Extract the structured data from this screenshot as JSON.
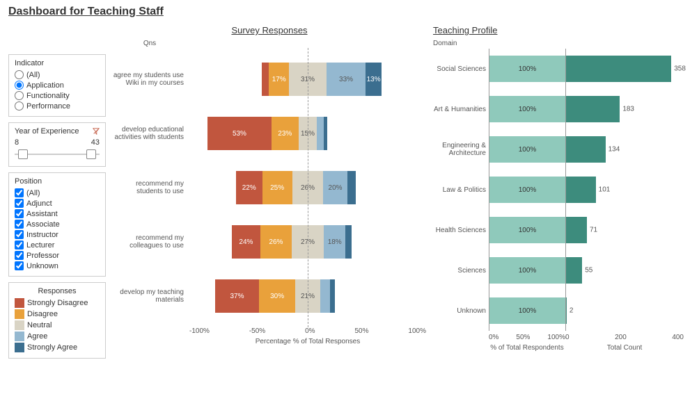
{
  "title": "Dashboard for Teaching Staff",
  "colors": {
    "strongly_disagree": "#c1563e",
    "disagree": "#e9a13b",
    "neutral": "#d9d4c5",
    "agree": "#94b8d0",
    "strongly_agree": "#3b6e8f",
    "pct_bar": "#8fc9bb",
    "count_bar": "#3d8c7d",
    "border": "#cccccc",
    "text_muted": "#555555"
  },
  "filters": {
    "indicator": {
      "title": "Indicator",
      "options": [
        "(All)",
        "Application",
        "Functionality",
        "Performance"
      ],
      "selected": "Application"
    },
    "yoe": {
      "title": "Year of Experience",
      "min": 8,
      "max": 43,
      "low_pos": 0.04,
      "high_pos": 0.96
    },
    "position": {
      "title": "Position",
      "options": [
        "(All)",
        "Adjunct",
        "Assistant",
        "Associate",
        "Instructor",
        "Lecturer",
        "Professor",
        "Unknown"
      ]
    }
  },
  "legend": {
    "title": "Responses",
    "items": [
      {
        "label": "Strongly Disagree",
        "color": "#c1563e"
      },
      {
        "label": "Disagree",
        "color": "#e9a13b"
      },
      {
        "label": "Neutral",
        "color": "#d9d4c5"
      },
      {
        "label": "Agree",
        "color": "#94b8d0"
      },
      {
        "label": "Strongly Agree",
        "color": "#3b6e8f"
      }
    ]
  },
  "survey": {
    "title": "Survey Responses",
    "qns_label": "Qns",
    "x_label": "Percentage % of Total Responses",
    "x_ticks": [
      "-100%",
      "-50%",
      "0%",
      "50%",
      "100%"
    ],
    "x_min": -100,
    "x_max": 100,
    "rows": [
      {
        "label": "agree my students use Wiki in my courses",
        "segments": [
          {
            "cat": "strongly_disagree",
            "pct": 6,
            "show": false
          },
          {
            "cat": "disagree",
            "pct": 17,
            "show": true
          },
          {
            "cat": "neutral",
            "pct": 31,
            "show": true
          },
          {
            "cat": "agree",
            "pct": 33,
            "show": true
          },
          {
            "cat": "strongly_agree",
            "pct": 13,
            "show": true
          }
        ]
      },
      {
        "label": "develop educational activities with students",
        "segments": [
          {
            "cat": "strongly_disagree",
            "pct": 53,
            "show": true
          },
          {
            "cat": "disagree",
            "pct": 23,
            "show": true
          },
          {
            "cat": "neutral",
            "pct": 15,
            "show": true
          },
          {
            "cat": "agree",
            "pct": 6,
            "show": false
          },
          {
            "cat": "strongly_agree",
            "pct": 3,
            "show": false
          }
        ]
      },
      {
        "label": "recommend my students to use",
        "segments": [
          {
            "cat": "strongly_disagree",
            "pct": 22,
            "show": true
          },
          {
            "cat": "disagree",
            "pct": 25,
            "show": true
          },
          {
            "cat": "neutral",
            "pct": 26,
            "show": true
          },
          {
            "cat": "agree",
            "pct": 20,
            "show": true
          },
          {
            "cat": "strongly_agree",
            "pct": 7,
            "show": false
          }
        ]
      },
      {
        "label": "recommend my colleagues to use",
        "segments": [
          {
            "cat": "strongly_disagree",
            "pct": 24,
            "show": true
          },
          {
            "cat": "disagree",
            "pct": 26,
            "show": true
          },
          {
            "cat": "neutral",
            "pct": 27,
            "show": true
          },
          {
            "cat": "agree",
            "pct": 18,
            "show": true
          },
          {
            "cat": "strongly_agree",
            "pct": 5,
            "show": false
          }
        ]
      },
      {
        "label": "develop my teaching materials",
        "segments": [
          {
            "cat": "strongly_disagree",
            "pct": 37,
            "show": true
          },
          {
            "cat": "disagree",
            "pct": 30,
            "show": true
          },
          {
            "cat": "neutral",
            "pct": 21,
            "show": true
          },
          {
            "cat": "agree",
            "pct": 8,
            "show": false
          },
          {
            "cat": "strongly_agree",
            "pct": 4,
            "show": false
          }
        ]
      }
    ]
  },
  "profile": {
    "title": "Teaching Profile",
    "domain_label": "Domain",
    "pct_x_label": "% of Total Respondents",
    "count_x_label": "Total Count",
    "pct_ticks": [
      "0%",
      "50%",
      "100%"
    ],
    "pct_max": 100,
    "count_ticks": [
      "0",
      "200",
      "400"
    ],
    "count_max": 400,
    "rows": [
      {
        "label": "Social Sciences",
        "pct": 100,
        "count": 358,
        "pct_side_label": null
      },
      {
        "label": "Art & Humanities",
        "pct": 100,
        "count": 183,
        "pct_side_label": null
      },
      {
        "label": "Engineering & Architecture",
        "pct": 100,
        "count": 134,
        "pct_side_label": null
      },
      {
        "label": "Law & Politics",
        "pct": 100,
        "count": 101,
        "pct_side_label": "100%"
      },
      {
        "label": "Health Sciences",
        "pct": 100,
        "count": 71,
        "pct_side_label": null
      },
      {
        "label": "Sciences",
        "pct": 100,
        "count": 55,
        "pct_side_label": null
      },
      {
        "label": "Unknown",
        "pct": 100,
        "count": 2,
        "pct_side_label": null
      }
    ]
  }
}
